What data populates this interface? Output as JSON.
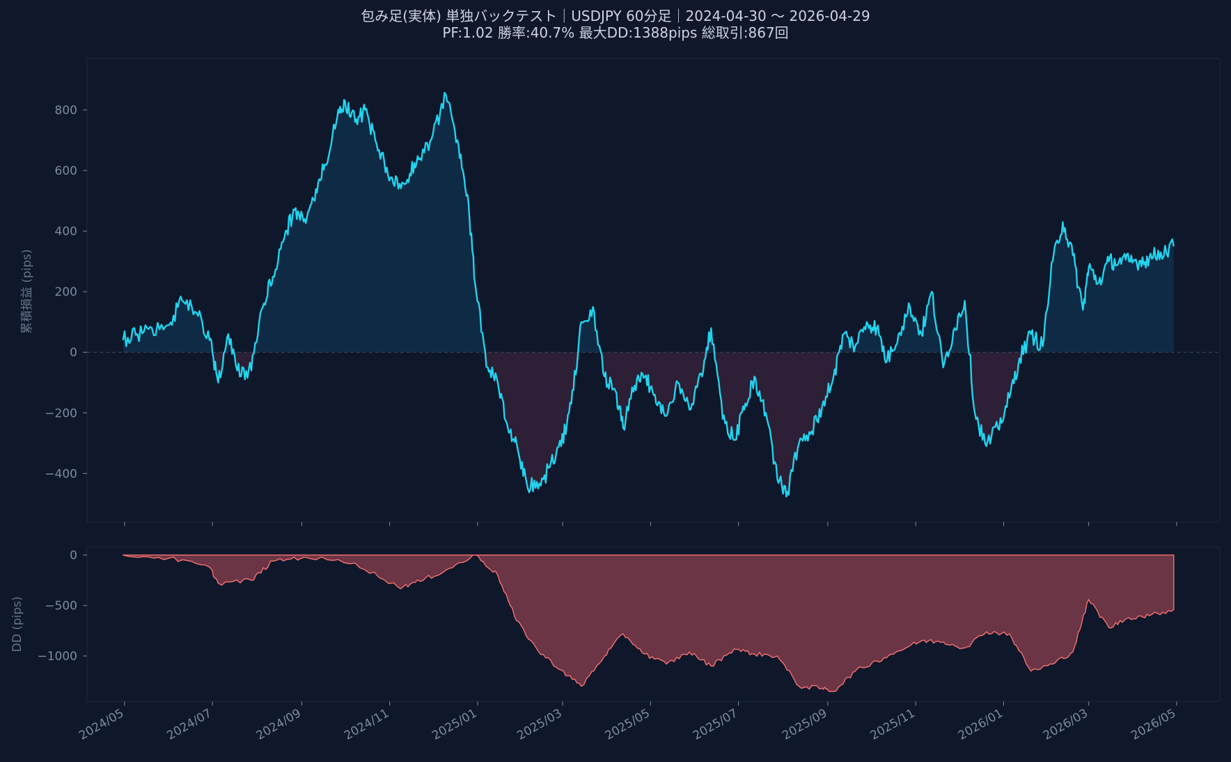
{
  "title": {
    "line1": "包み足(実体) 単独バックテスト｜USDJPY 60分足｜2024-04-30 〜 2026-04-29",
    "line2": "PF:1.02  勝率:40.7%  最大DD:1388pips  総取引:867回"
  },
  "colors": {
    "background": "#0f172a",
    "panel_border": "#1e293b",
    "equity_line": "#22d3ee",
    "equity_fill_positive": "#0f2a44",
    "equity_fill_negative": "#2d1f35",
    "dd_line": "#f87171",
    "dd_fill": "#6b3545",
    "zero_line": "#3b4a60",
    "tick_text": "#7c8aa0"
  },
  "chart_data": [
    {
      "type": "line",
      "panel": "equity",
      "xlabel": "",
      "ylabel": "累積損益 (pips)",
      "ylim": [
        -560,
        970
      ],
      "yticks": [
        800,
        600,
        400,
        200,
        0,
        -200,
        -400
      ],
      "ytick_labels": [
        "800",
        "600",
        "400",
        "200",
        "0",
        "−200",
        "−400"
      ],
      "zero_line": true,
      "fill_to_zero": true,
      "series": [
        {
          "x": [
            "2024-04-30",
            "2024-05-10",
            "2024-05-20",
            "2024-06-01",
            "2024-06-10",
            "2024-06-20",
            "2024-06-29",
            "2024-07-05",
            "2024-07-12",
            "2024-07-20",
            "2024-07-28",
            "2024-08-05",
            "2024-08-12",
            "2024-08-20",
            "2024-08-27",
            "2024-09-03",
            "2024-09-10",
            "2024-09-17",
            "2024-09-25",
            "2024-10-01",
            "2024-10-08",
            "2024-10-15",
            "2024-10-22",
            "2024-10-30",
            "2024-11-07",
            "2024-11-15",
            "2024-11-22",
            "2024-12-01",
            "2024-12-10",
            "2024-12-18",
            "2024-12-25",
            "2024-12-31",
            "2025-01-08",
            "2025-01-15",
            "2025-01-22",
            "2025-01-28",
            "2025-02-04",
            "2025-02-12",
            "2025-02-20",
            "2025-02-28",
            "2025-03-07",
            "2025-03-14",
            "2025-03-22",
            "2025-03-30",
            "2025-04-06",
            "2025-04-12",
            "2025-04-20",
            "2025-04-27",
            "2025-05-04",
            "2025-05-12",
            "2025-05-20",
            "2025-05-28",
            "2025-06-05",
            "2025-06-12",
            "2025-06-20",
            "2025-06-28",
            "2025-07-05",
            "2025-07-12",
            "2025-07-20",
            "2025-07-28",
            "2025-08-04",
            "2025-08-12",
            "2025-08-20",
            "2025-08-28",
            "2025-09-05",
            "2025-09-12",
            "2025-09-20",
            "2025-09-28",
            "2025-10-05",
            "2025-10-12",
            "2025-10-20",
            "2025-10-28",
            "2025-11-05",
            "2025-11-12",
            "2025-11-20",
            "2025-11-28",
            "2025-12-05",
            "2025-12-12",
            "2025-12-20",
            "2025-12-28",
            "2026-01-05",
            "2026-01-12",
            "2026-01-20",
            "2026-01-28",
            "2026-02-04",
            "2026-02-11",
            "2026-02-18",
            "2026-02-25",
            "2026-03-01",
            "2026-03-08",
            "2026-03-15",
            "2026-03-22",
            "2026-03-29",
            "2026-04-05",
            "2026-04-12",
            "2026-04-20",
            "2026-04-29"
          ],
          "y": [
            40,
            60,
            80,
            90,
            170,
            130,
            40,
            -100,
            60,
            -80,
            -60,
            150,
            250,
            380,
            470,
            440,
            500,
            620,
            760,
            830,
            760,
            800,
            700,
            610,
            540,
            590,
            640,
            720,
            850,
            700,
            520,
            200,
            -50,
            -100,
            -250,
            -300,
            -430,
            -450,
            -380,
            -310,
            -170,
            100,
            150,
            -80,
            -120,
            -250,
            -110,
            -80,
            -140,
            -210,
            -100,
            -190,
            -70,
            80,
            -220,
            -290,
            -190,
            -80,
            -200,
            -420,
            -460,
            -300,
            -270,
            -180,
            -80,
            60,
            20,
            100,
            80,
            -30,
            60,
            150,
            60,
            200,
            -50,
            80,
            170,
            -200,
            -310,
            -250,
            -150,
            -20,
            60,
            20,
            300,
            430,
            320,
            140,
            280,
            230,
            300,
            300,
            300,
            300,
            310,
            330,
            350
          ],
          "values_note": ""
        }
      ]
    },
    {
      "type": "area",
      "panel": "drawdown",
      "xlabel": "",
      "ylabel": "DD (pips)",
      "ylim": [
        -1450,
        80
      ],
      "yticks": [
        0,
        -500,
        -1000
      ],
      "ytick_labels": [
        "0",
        "−500",
        "−1000"
      ],
      "series": [
        {
          "x": [
            "2024-04-30",
            "2024-06-01",
            "2024-06-29",
            "2024-07-05",
            "2024-07-28",
            "2024-08-12",
            "2024-09-03",
            "2024-10-08",
            "2024-11-07",
            "2024-11-22",
            "2024-12-10",
            "2024-12-31",
            "2025-01-15",
            "2025-01-28",
            "2025-02-12",
            "2025-02-28",
            "2025-03-14",
            "2025-03-30",
            "2025-04-12",
            "2025-04-27",
            "2025-05-12",
            "2025-05-28",
            "2025-06-12",
            "2025-06-28",
            "2025-07-12",
            "2025-07-28",
            "2025-08-12",
            "2025-08-28",
            "2025-09-05",
            "2025-09-20",
            "2025-10-05",
            "2025-10-20",
            "2025-11-05",
            "2025-11-20",
            "2025-12-05",
            "2025-12-20",
            "2026-01-05",
            "2026-01-20",
            "2026-02-04",
            "2026-02-18",
            "2026-03-01",
            "2026-03-15",
            "2026-03-29",
            "2026-04-12",
            "2026-04-29"
          ],
          "y": [
            0,
            -30,
            -120,
            -280,
            -250,
            -60,
            -20,
            -80,
            -320,
            -260,
            -150,
            0,
            -200,
            -650,
            -950,
            -1140,
            -1300,
            -1000,
            -780,
            -980,
            -1080,
            -960,
            -1100,
            -930,
            -980,
            -1000,
            -1300,
            -1320,
            -1350,
            -1150,
            -1050,
            -950,
            -850,
            -860,
            -920,
            -760,
            -780,
            -1150,
            -1080,
            -960,
            -440,
            -720,
            -620,
            -600,
            -540
          ]
        }
      ],
      "max_drawdown_value": -1388
    }
  ],
  "x_axis": {
    "ticks": [
      "2024-05-01",
      "2024-07-01",
      "2024-09-01",
      "2024-11-01",
      "2025-01-01",
      "2025-03-01",
      "2025-05-01",
      "2025-07-01",
      "2025-09-01",
      "2025-11-01",
      "2026-01-01",
      "2026-03-01",
      "2026-05-01"
    ],
    "tick_labels": [
      "2024/05",
      "2024/07",
      "2024/09",
      "2024/11",
      "2025/01",
      "2025/03",
      "2025/05",
      "2025/07",
      "2025/09",
      "2025/11",
      "2026/01",
      "2026/03",
      "2026/05"
    ],
    "xlim": [
      "2024-04-05",
      "2026-05-31"
    ]
  }
}
